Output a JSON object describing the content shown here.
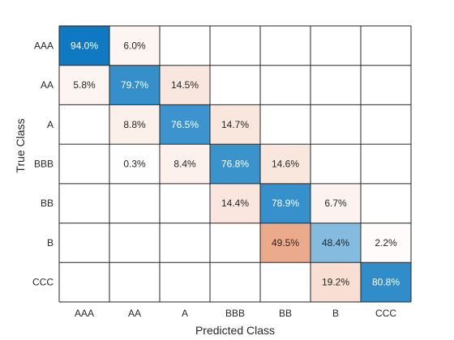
{
  "chart_data": {
    "type": "heatmap",
    "xlabel": "Predicted Class",
    "ylabel": "True Class",
    "x_categories": [
      "AAA",
      "AA",
      "A",
      "BBB",
      "BB",
      "B",
      "CCC"
    ],
    "y_categories": [
      "AAA",
      "AA",
      "A",
      "BBB",
      "BB",
      "B",
      "CCC"
    ],
    "unit": "%",
    "values": [
      [
        94.0,
        6.0,
        null,
        null,
        null,
        null,
        null
      ],
      [
        5.8,
        79.7,
        14.5,
        null,
        null,
        null,
        null
      ],
      [
        null,
        8.8,
        76.5,
        14.7,
        null,
        null,
        null
      ],
      [
        null,
        0.3,
        8.4,
        76.8,
        14.6,
        null,
        null
      ],
      [
        null,
        null,
        null,
        14.4,
        78.9,
        6.7,
        null
      ],
      [
        null,
        null,
        null,
        null,
        49.5,
        48.4,
        2.2
      ],
      [
        null,
        null,
        null,
        null,
        null,
        19.2,
        80.8
      ]
    ],
    "colors": {
      "correct": "#0072bd",
      "incorrect": "#d95319",
      "empty": "#ffffff",
      "grid": "#262626"
    }
  }
}
